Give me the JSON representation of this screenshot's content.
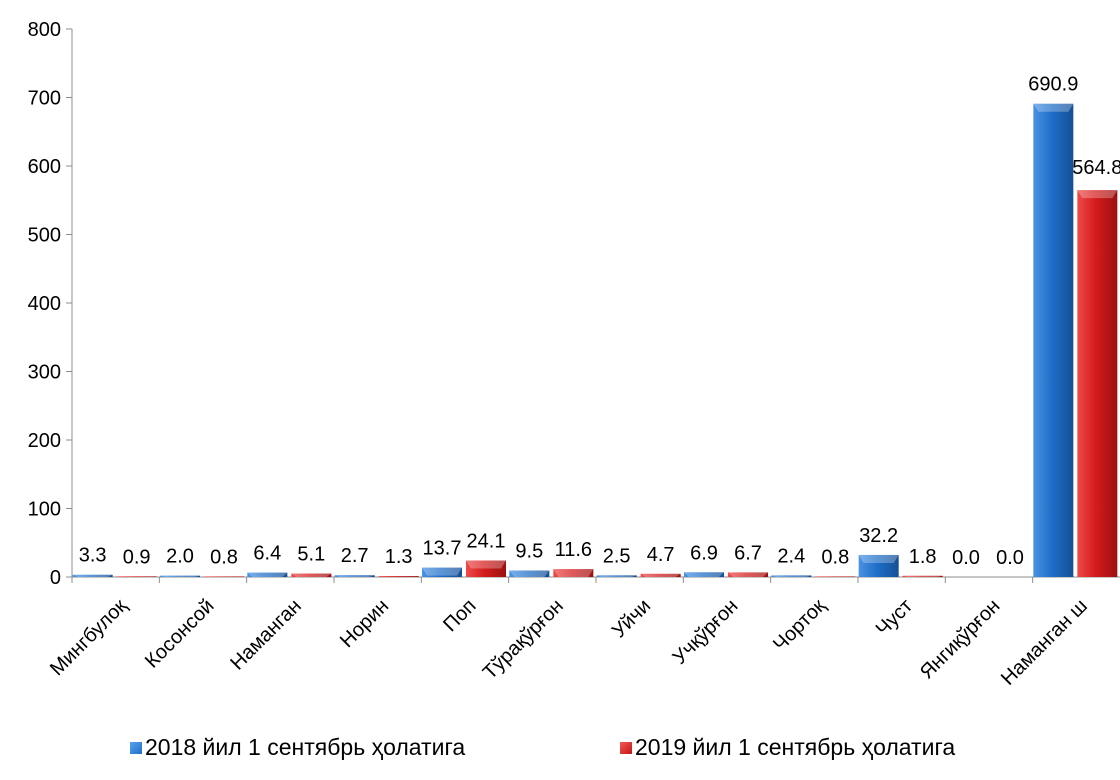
{
  "chart_data": {
    "type": "bar",
    "title": "",
    "xlabel": "",
    "ylabel": "",
    "ylim": [
      0,
      800
    ],
    "yticks": [
      0,
      100,
      200,
      300,
      400,
      500,
      600,
      700,
      800
    ],
    "grid": false,
    "legend_position": "bottom",
    "categories": [
      "Мингбулоқ",
      "Косонсой",
      "Наманган",
      "Норин",
      "Поп",
      "Тўрақўрғон",
      "Уйчи",
      "Учқўрғон",
      "Чортоқ",
      "Чуст",
      "Янгиқўрғон",
      "Наманган ш"
    ],
    "series": [
      {
        "name": "2018 йил 1 сентябрь ҳолатига",
        "color": "#1f6fc9",
        "values": [
          3.3,
          2.0,
          6.4,
          2.7,
          13.7,
          9.5,
          2.5,
          6.9,
          2.4,
          32.2,
          0.0,
          690.9
        ],
        "labels": [
          "3.3",
          "2.0",
          "6.4",
          "2.7",
          "13.7",
          "9.5",
          "2.5",
          "6.9",
          "2.4",
          "32.2",
          "0.0",
          "690.9"
        ]
      },
      {
        "name": "2019 йил 1 сентябрь ҳолатига",
        "color": "#d51c1c",
        "values": [
          0.9,
          0.8,
          5.1,
          1.3,
          24.1,
          11.6,
          4.7,
          6.7,
          0.8,
          1.8,
          0.0,
          564.8
        ],
        "labels": [
          "0.9",
          "0.8",
          "5.1",
          "1.3",
          "24.1",
          "11.6",
          "4.7",
          "6.7",
          "0.8",
          "1.8",
          "0.0",
          "564.8"
        ]
      }
    ]
  }
}
